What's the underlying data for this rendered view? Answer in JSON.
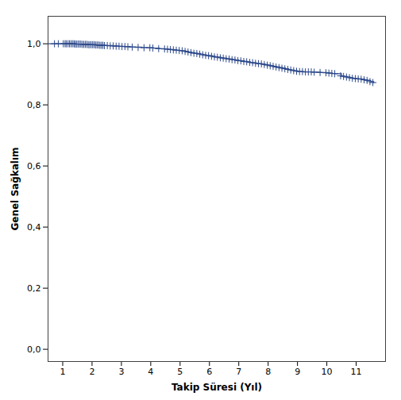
{
  "chart_data": {
    "type": "step",
    "xlabel": "Takip Süresi (Yıl)",
    "ylabel": "Genel Sağkalım",
    "xlim": [
      0.5,
      12.0
    ],
    "ylim": [
      -0.04,
      1.09
    ],
    "xticks": [
      1,
      2,
      3,
      4,
      5,
      6,
      7,
      8,
      9,
      10,
      11
    ],
    "yticks": [
      {
        "value": 0.0,
        "label": "0,0"
      },
      {
        "value": 0.2,
        "label": "0,2"
      },
      {
        "value": 0.4,
        "label": "0,4"
      },
      {
        "value": 0.6,
        "label": "0,6"
      },
      {
        "value": 0.8,
        "label": "0,8"
      },
      {
        "value": 1.0,
        "label": "1,0"
      }
    ],
    "grid": false,
    "series": [
      {
        "type": "step",
        "color": "#2e4a8c",
        "x": [
          0.5,
          0.7,
          0.8,
          0.9,
          1.0,
          1.05,
          1.1,
          1.2,
          1.3,
          1.4,
          1.45,
          1.5,
          1.55,
          1.6,
          1.65,
          1.7,
          1.75,
          1.8,
          1.85,
          1.9,
          1.95,
          2.0,
          2.05,
          2.1,
          2.15,
          2.2,
          2.25,
          2.3,
          2.35,
          2.4,
          2.5,
          2.6,
          2.7,
          2.8,
          2.9,
          3.0,
          3.1,
          3.2,
          3.3,
          3.5,
          3.7,
          3.9,
          4.0,
          4.1,
          4.3,
          4.5,
          4.6,
          4.7,
          4.8,
          4.9,
          5.0,
          5.1,
          5.2,
          5.3,
          5.4,
          5.5,
          5.6,
          5.7,
          5.8,
          5.9,
          6.0,
          6.1,
          6.2,
          6.3,
          6.4,
          6.5,
          6.6,
          6.7,
          6.8,
          6.9,
          7.0,
          7.1,
          7.2,
          7.3,
          7.4,
          7.5,
          7.6,
          7.7,
          7.8,
          7.9,
          8.0,
          8.1,
          8.2,
          8.3,
          8.4,
          8.5,
          8.6,
          8.7,
          8.8,
          8.9,
          9.0,
          9.05,
          9.1,
          9.2,
          9.3,
          9.4,
          9.5,
          9.6,
          9.8,
          10.0,
          10.1,
          10.2,
          10.3,
          10.5,
          10.6,
          10.7,
          10.8,
          10.9,
          11.0,
          11.1,
          11.2,
          11.3,
          11.4,
          11.5,
          11.6
        ],
        "values": [
          1.0,
          1.0,
          1.0,
          1.0,
          1.0,
          1.0,
          1.0,
          1.0,
          1.0,
          1.0,
          0.999,
          0.999,
          0.999,
          0.999,
          0.999,
          0.998,
          0.998,
          0.998,
          0.998,
          0.997,
          0.997,
          0.997,
          0.997,
          0.997,
          0.996,
          0.996,
          0.996,
          0.995,
          0.995,
          0.995,
          0.994,
          0.994,
          0.993,
          0.993,
          0.992,
          0.992,
          0.991,
          0.991,
          0.99,
          0.989,
          0.988,
          0.987,
          0.987,
          0.986,
          0.984,
          0.983,
          0.982,
          0.981,
          0.98,
          0.979,
          0.978,
          0.977,
          0.975,
          0.973,
          0.971,
          0.969,
          0.968,
          0.966,
          0.964,
          0.962,
          0.961,
          0.959,
          0.957,
          0.956,
          0.954,
          0.953,
          0.951,
          0.95,
          0.948,
          0.947,
          0.945,
          0.944,
          0.942,
          0.941,
          0.939,
          0.938,
          0.936,
          0.935,
          0.934,
          0.932,
          0.93,
          0.928,
          0.926,
          0.924,
          0.922,
          0.92,
          0.918,
          0.916,
          0.914,
          0.912,
          0.91,
          0.909,
          0.909,
          0.908,
          0.908,
          0.908,
          0.907,
          0.907,
          0.906,
          0.905,
          0.904,
          0.903,
          0.902,
          0.895,
          0.893,
          0.891,
          0.889,
          0.887,
          0.886,
          0.885,
          0.884,
          0.882,
          0.88,
          0.876,
          0.873
        ]
      },
      {
        "type": "scatter",
        "marker": "plus",
        "color": "#2e4a8c",
        "x": [
          0.72,
          0.85,
          1.02,
          1.08,
          1.12,
          1.18,
          1.23,
          1.28,
          1.33,
          1.38,
          1.42,
          1.47,
          1.52,
          1.57,
          1.62,
          1.67,
          1.72,
          1.77,
          1.82,
          1.87,
          1.92,
          1.97,
          2.02,
          2.07,
          2.12,
          2.17,
          2.22,
          2.27,
          2.32,
          2.37,
          2.42,
          2.52,
          2.62,
          2.72,
          2.82,
          2.92,
          3.02,
          3.12,
          3.22,
          3.37,
          3.57,
          3.77,
          3.97,
          4.07,
          4.27,
          4.47,
          4.57,
          4.67,
          4.77,
          4.87,
          4.97,
          5.07,
          5.17,
          5.27,
          5.37,
          5.47,
          5.57,
          5.67,
          5.77,
          5.87,
          5.97,
          6.07,
          6.17,
          6.27,
          6.37,
          6.47,
          6.57,
          6.67,
          6.77,
          6.87,
          6.97,
          7.07,
          7.17,
          7.27,
          7.37,
          7.47,
          7.57,
          7.67,
          7.77,
          7.87,
          7.97,
          8.07,
          8.17,
          8.27,
          8.37,
          8.47,
          8.57,
          8.67,
          8.77,
          8.87,
          8.97,
          9.07,
          9.17,
          9.27,
          9.37,
          9.47,
          9.57,
          9.77,
          9.97,
          10.07,
          10.17,
          10.27,
          10.47,
          10.57,
          10.67,
          10.77,
          10.87,
          10.97,
          11.07,
          11.17,
          11.27,
          11.37,
          11.47,
          11.57
        ],
        "values": [
          1.0,
          1.0,
          1.0,
          1.0,
          1.0,
          1.0,
          1.0,
          1.0,
          1.0,
          1.0,
          0.999,
          0.999,
          0.999,
          0.999,
          0.999,
          0.998,
          0.998,
          0.998,
          0.998,
          0.997,
          0.997,
          0.997,
          0.997,
          0.997,
          0.996,
          0.996,
          0.996,
          0.995,
          0.995,
          0.995,
          0.994,
          0.994,
          0.993,
          0.993,
          0.992,
          0.992,
          0.991,
          0.991,
          0.99,
          0.989,
          0.988,
          0.987,
          0.987,
          0.986,
          0.984,
          0.983,
          0.982,
          0.981,
          0.98,
          0.979,
          0.978,
          0.977,
          0.975,
          0.973,
          0.971,
          0.969,
          0.968,
          0.966,
          0.964,
          0.962,
          0.961,
          0.959,
          0.957,
          0.956,
          0.954,
          0.953,
          0.951,
          0.95,
          0.948,
          0.947,
          0.945,
          0.944,
          0.942,
          0.941,
          0.939,
          0.938,
          0.936,
          0.935,
          0.934,
          0.932,
          0.93,
          0.928,
          0.926,
          0.924,
          0.922,
          0.92,
          0.918,
          0.916,
          0.914,
          0.912,
          0.91,
          0.909,
          0.909,
          0.908,
          0.908,
          0.908,
          0.907,
          0.906,
          0.905,
          0.904,
          0.903,
          0.902,
          0.895,
          0.893,
          0.891,
          0.889,
          0.887,
          0.886,
          0.885,
          0.884,
          0.882,
          0.88,
          0.876,
          0.873
        ]
      }
    ]
  }
}
